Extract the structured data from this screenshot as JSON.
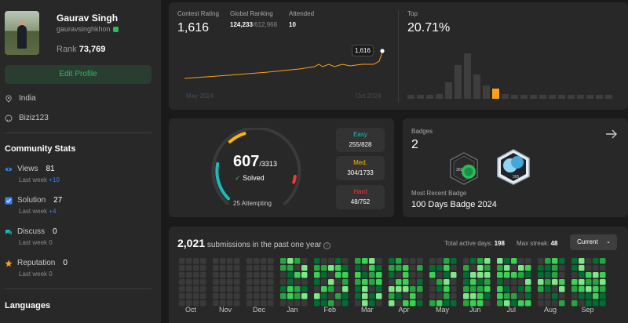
{
  "profile": {
    "name": "Gaurav Singh",
    "handle": "gauravsinghkhon",
    "rank_label": "Rank",
    "rank_value": "73,769",
    "edit_label": "Edit Profile",
    "location": "India",
    "github": "Biziz123"
  },
  "community": {
    "title": "Community Stats",
    "stats": [
      {
        "label": "Views",
        "value": "81",
        "week": "Last week",
        "delta": "+10"
      },
      {
        "label": "Solution",
        "value": "27",
        "week": "Last week",
        "delta": "+4"
      },
      {
        "label": "Discuss",
        "value": "0",
        "week": "Last week",
        "delta": "0"
      },
      {
        "label": "Reputation",
        "value": "0",
        "week": "Last week",
        "delta": "0"
      }
    ]
  },
  "languages_title": "Languages",
  "contest": {
    "rating_label": "Contest Rating",
    "rating": "1,616",
    "global_label": "Global Ranking",
    "global_rank": "124,233",
    "global_total": "/612,968",
    "attended_label": "Attended",
    "attended": "10",
    "tooltip": "1,616",
    "x_start": "May 2024",
    "x_end": "Oct 2024",
    "top_label": "Top",
    "top_value": "20.71%"
  },
  "solved": {
    "count": "607",
    "total": "/3313",
    "solved_label": "Solved",
    "attempting": "25 Attempting",
    "easy_label": "Easy",
    "easy": "255/828",
    "med_label": "Med.",
    "med": "304/1733",
    "hard_label": "Hard",
    "hard": "48/752",
    "easy_fraction": 0.308,
    "med_fraction": 0.175,
    "hard_fraction": 0.064
  },
  "badges": {
    "title": "Badges",
    "count": "2",
    "recent_label": "Most Recent Badge",
    "recent_name": "100 Days Badge 2024",
    "badge1_text": "365",
    "badge2_text": "365"
  },
  "submissions": {
    "count": "2,021",
    "text": "submissions in the past one year",
    "active_label": "Total active days:",
    "active": "198",
    "streak_label": "Max streak:",
    "streak": "48",
    "select": "Current",
    "months": [
      "Oct",
      "Nov",
      "Dec",
      "Jan",
      "Feb",
      "Mar",
      "Apr",
      "May",
      "Jun",
      "Jul",
      "Aug",
      "Sep"
    ]
  },
  "colors": {
    "easy": "#1cbaba",
    "medium": "#ffb700",
    "hard": "#f63737",
    "green": "#2cbb5d",
    "accent_orange": "#ffa116"
  }
}
